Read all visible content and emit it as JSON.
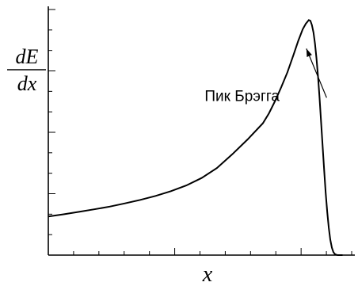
{
  "chart_data": {
    "type": "line",
    "title": "",
    "xlabel": "x",
    "ylabel": {
      "numerator": "dE",
      "denominator": "dx"
    },
    "grid": false,
    "legend": "none",
    "xlim": [
      0,
      10
    ],
    "ylim": [
      0,
      10
    ],
    "series": [
      {
        "color": "#000000",
        "x": [
          0,
          0.5,
          1,
          1.5,
          2,
          2.5,
          3,
          3.5,
          4,
          4.5,
          5,
          5.5,
          6,
          6.5,
          7,
          7.2,
          7.4,
          7.6,
          7.8,
          8,
          8.15,
          8.3,
          8.4,
          8.5,
          8.55,
          8.6,
          8.65,
          8.7,
          8.75,
          8.8,
          8.85,
          8.9,
          8.95,
          9,
          9.05,
          9.1,
          9.15,
          9.2,
          9.25,
          9.3,
          9.35,
          9.4,
          9.45,
          9.5,
          9.55,
          9.6
        ],
        "y": [
          1.55,
          1.64,
          1.74,
          1.84,
          1.95,
          2.08,
          2.22,
          2.38,
          2.57,
          2.8,
          3.1,
          3.5,
          4.05,
          4.65,
          5.3,
          5.7,
          6.2,
          6.75,
          7.35,
          8.05,
          8.6,
          9.08,
          9.3,
          9.45,
          9.42,
          9.25,
          8.95,
          8.5,
          7.9,
          7.15,
          6.3,
          5.35,
          4.35,
          3.4,
          2.5,
          1.72,
          1.1,
          0.62,
          0.3,
          0.12,
          0.04,
          0.01,
          0,
          0,
          0,
          0
        ]
      }
    ],
    "annotations": [
      {
        "text": "Пик Брэгга",
        "x": 5.1,
        "y": 6.2,
        "arrow_to": {
          "x": 8.42,
          "y": 8.3
        }
      }
    ]
  }
}
